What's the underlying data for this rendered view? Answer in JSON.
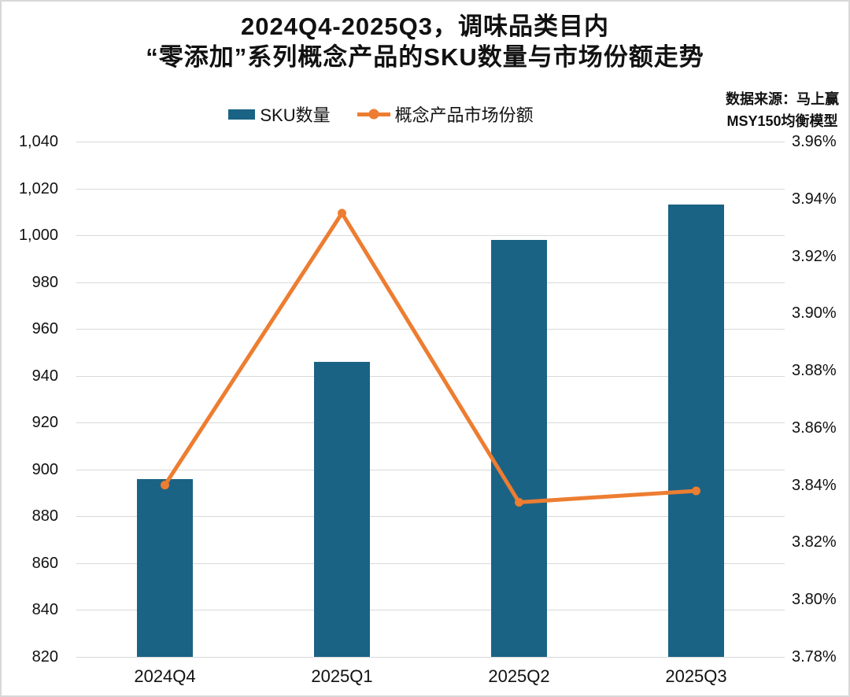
{
  "title": {
    "line1": "2024Q4-2025Q3，调味品类目内",
    "line2": "“零添加”系列概念产品的SKU数量与市场份额走势"
  },
  "source": {
    "line1": "数据来源：马上赢",
    "line2": "MSY150均衡模型"
  },
  "legend": {
    "items": [
      {
        "label": "SKU数量",
        "type": "bar",
        "color": "#1b6384"
      },
      {
        "label": "概念产品市场份额",
        "type": "line",
        "color": "#ed7d31"
      }
    ]
  },
  "colors": {
    "bar": "#1b6384",
    "line": "#ed7d31",
    "gridline": "#d9d9d9",
    "text": "#111111"
  },
  "chart_data": {
    "type": "bar",
    "subtype": "dual-axis combo: bars (left axis) + line with markers (right axis)",
    "title": "2024Q4-2025Q3，调味品类目内“零添加”系列概念产品的SKU数量与市场份额走势",
    "categories": [
      "2024Q4",
      "2025Q1",
      "2025Q2",
      "2025Q3"
    ],
    "series": [
      {
        "name": "SKU数量",
        "type": "bar",
        "axis": "left",
        "color": "#1b6384",
        "values": [
          896,
          946,
          998,
          1013
        ]
      },
      {
        "name": "概念产品市场份额",
        "type": "line",
        "axis": "right",
        "color": "#ed7d31",
        "values": [
          3.84,
          3.935,
          3.834,
          3.838
        ],
        "unit": "%"
      }
    ],
    "left_axis": {
      "min": 820,
      "max": 1040,
      "step": 20,
      "ticks": [
        "1,040",
        "1,020",
        "1,000",
        "980",
        "960",
        "940",
        "920",
        "900",
        "880",
        "860",
        "840",
        "820"
      ]
    },
    "right_axis": {
      "min": 3.78,
      "max": 3.96,
      "step": 0.02,
      "ticks": [
        "3.96%",
        "3.94%",
        "3.92%",
        "3.90%",
        "3.88%",
        "3.86%",
        "3.84%",
        "3.82%",
        "3.80%",
        "3.78%"
      ]
    },
    "grid": "horizontal gridlines at left-axis ticks",
    "legend_position": "top-center"
  }
}
